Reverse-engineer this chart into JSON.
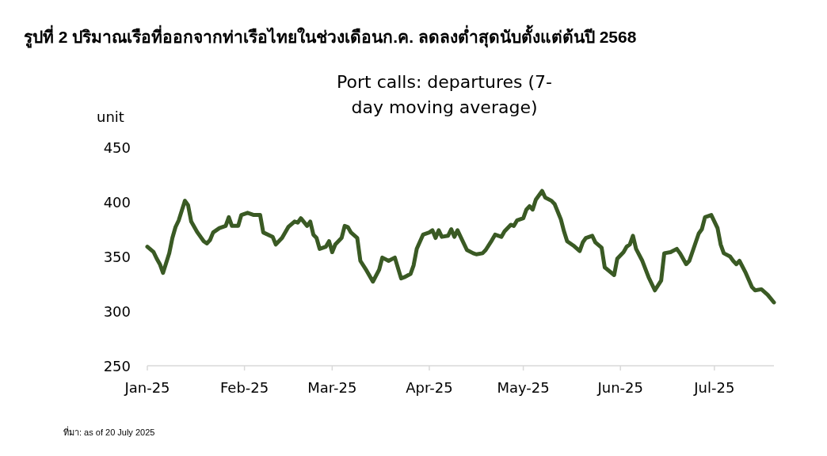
{
  "chart_data": {
    "type": "line",
    "title": "รูปที่ 2 ปริมาณเรือที่ออกจากท่าเรือไทยในช่วงเดือนก.ค. ลดลงต่ำสุดนับตั้งแต่ต้นปี 2568",
    "subtitle": "Port calls: departures (7-day moving average)",
    "ylabel": "unit",
    "annotations": [
      "ที่มา: as of 20 July 2025"
    ],
    "x": [
      "2025-01-01",
      "2025-01-03",
      "2025-01-04",
      "2025-01-05",
      "2025-01-06",
      "2025-01-08",
      "2025-01-09",
      "2025-01-10",
      "2025-01-11",
      "2025-01-12",
      "2025-01-13",
      "2025-01-14",
      "2025-01-15",
      "2025-01-17",
      "2025-01-19",
      "2025-01-20",
      "2025-01-21",
      "2025-01-22",
      "2025-01-24",
      "2025-01-26",
      "2025-01-27",
      "2025-01-28",
      "2025-01-30",
      "2025-01-31",
      "2025-02-02",
      "2025-02-04",
      "2025-02-06",
      "2025-02-07",
      "2025-02-10",
      "2025-02-11",
      "2025-02-13",
      "2025-02-15",
      "2025-02-17",
      "2025-02-18",
      "2025-02-19",
      "2025-02-21",
      "2025-02-22",
      "2025-02-23",
      "2025-02-24",
      "2025-02-25",
      "2025-02-27",
      "2025-02-28",
      "2025-03-01",
      "2025-03-02",
      "2025-03-04",
      "2025-03-05",
      "2025-03-06",
      "2025-03-07",
      "2025-03-09",
      "2025-03-10",
      "2025-03-12",
      "2025-03-14",
      "2025-03-16",
      "2025-03-17",
      "2025-03-19",
      "2025-03-21",
      "2025-03-23",
      "2025-03-24",
      "2025-03-26",
      "2025-03-27",
      "2025-03-28",
      "2025-03-30",
      "2025-04-01",
      "2025-04-02",
      "2025-04-03",
      "2025-04-04",
      "2025-04-05",
      "2025-04-07",
      "2025-04-08",
      "2025-04-09",
      "2025-04-10",
      "2025-04-13",
      "2025-04-15",
      "2025-04-16",
      "2025-04-18",
      "2025-04-19",
      "2025-04-21",
      "2025-04-22",
      "2025-04-24",
      "2025-04-25",
      "2025-04-27",
      "2025-04-28",
      "2025-04-29",
      "2025-05-01",
      "2025-05-02",
      "2025-05-03",
      "2025-05-04",
      "2025-05-05",
      "2025-05-07",
      "2025-05-08",
      "2025-05-10",
      "2025-05-11",
      "2025-05-13",
      "2025-05-14",
      "2025-05-15",
      "2025-05-17",
      "2025-05-19",
      "2025-05-20",
      "2025-05-21",
      "2025-05-23",
      "2025-05-24",
      "2025-05-26",
      "2025-05-27",
      "2025-05-30",
      "2025-05-31",
      "2025-06-02",
      "2025-06-03",
      "2025-06-04",
      "2025-06-05",
      "2025-06-06",
      "2025-06-08",
      "2025-06-10",
      "2025-06-12",
      "2025-06-14",
      "2025-06-15",
      "2025-06-17",
      "2025-06-19",
      "2025-06-20",
      "2025-06-22",
      "2025-06-23",
      "2025-06-26",
      "2025-06-27",
      "2025-06-28",
      "2025-06-30",
      "2025-07-02",
      "2025-07-03",
      "2025-07-04",
      "2025-07-06",
      "2025-07-07",
      "2025-07-08",
      "2025-07-09",
      "2025-07-11",
      "2025-07-13",
      "2025-07-14",
      "2025-07-16",
      "2025-07-18",
      "2025-07-20"
    ],
    "series": [
      {
        "color": "#3a5a24",
        "values": [
          359,
          354,
          348,
          343,
          335,
          353,
          367,
          377,
          383,
          392,
          401,
          397,
          382,
          372,
          364,
          362,
          365,
          372,
          376,
          378,
          386,
          378,
          378,
          388,
          390,
          388,
          388,
          372,
          368,
          361,
          367,
          377,
          382,
          381,
          385,
          378,
          382,
          370,
          367,
          357,
          359,
          364,
          354,
          361,
          367,
          378,
          377,
          372,
          367,
          346,
          337,
          327,
          338,
          349,
          346,
          349,
          330,
          331,
          334,
          342,
          357,
          370,
          372,
          374,
          367,
          374,
          368,
          369,
          375,
          368,
          374,
          356,
          353,
          352,
          353,
          356,
          365,
          370,
          368,
          373,
          379,
          378,
          383,
          385,
          393,
          396,
          393,
          402,
          410,
          404,
          401,
          398,
          384,
          373,
          364,
          360,
          355,
          363,
          367,
          369,
          363,
          358,
          340,
          333,
          348,
          354,
          359,
          361,
          369,
          357,
          346,
          331,
          319,
          328,
          353,
          354,
          357,
          353,
          343,
          346,
          371,
          375,
          386,
          388,
          376,
          361,
          353,
          350,
          346,
          343,
          346,
          335,
          322,
          319,
          320,
          315,
          308
        ]
      }
    ],
    "xlim": [
      "2025-01-01",
      "2025-07-20"
    ],
    "xticks": [
      {
        "value": "2025-01-01",
        "label": "Jan-25"
      },
      {
        "value": "2025-02-01",
        "label": "Feb-25"
      },
      {
        "value": "2025-03-01",
        "label": "Mar-25"
      },
      {
        "value": "2025-04-01",
        "label": "Apr-25"
      },
      {
        "value": "2025-05-01",
        "label": "May-25"
      },
      {
        "value": "2025-06-01",
        "label": "Jun-25"
      },
      {
        "value": "2025-07-01",
        "label": "Jul-25"
      }
    ],
    "ylim": [
      250,
      450
    ],
    "yticks": [
      250,
      300,
      350,
      400,
      450
    ]
  }
}
